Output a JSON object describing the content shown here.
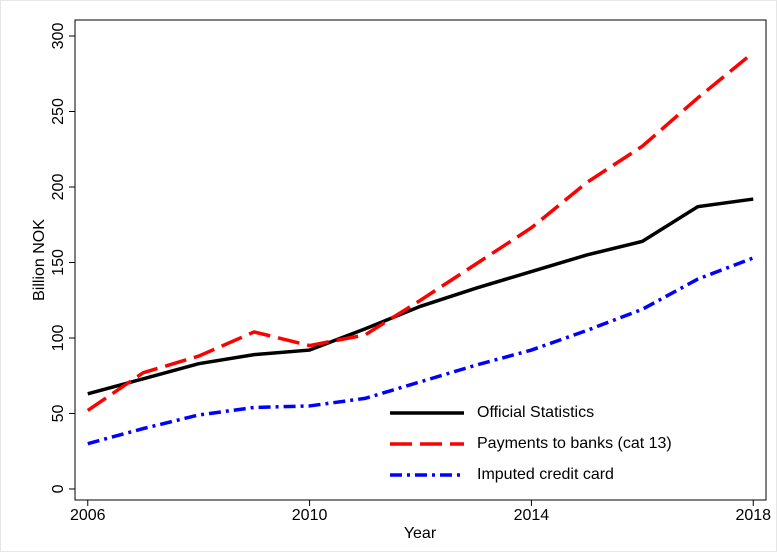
{
  "chart_data": {
    "type": "line",
    "x_label": "Year",
    "y_label": "Billion NOK",
    "x": [
      2006,
      2007,
      2008,
      2009,
      2010,
      2011,
      2012,
      2013,
      2014,
      2015,
      2016,
      2017,
      2018
    ],
    "series": [
      {
        "name": "Official Statistics",
        "color": "#000000",
        "line_style": "solid",
        "values": [
          63,
          73,
          83,
          89,
          92,
          106,
          121,
          133,
          144,
          155,
          164,
          187,
          192
        ]
      },
      {
        "name": "Payments to banks (cat 13)",
        "color": "#ff0000",
        "line_style": "dash",
        "values": [
          52,
          77,
          88,
          104,
          95,
          102,
          125,
          149,
          173,
          203,
          227,
          259,
          289
        ]
      },
      {
        "name": "Imputed credit card",
        "color": "#0000ff",
        "line_style": "dashdot",
        "values": [
          30,
          40,
          49,
          54,
          55,
          60,
          71,
          82,
          92,
          105,
          119,
          139,
          153
        ]
      }
    ],
    "xlim": [
      2005.77,
      2018.23
    ],
    "xticks": [
      2006,
      2010,
      2014,
      2018
    ],
    "ylim": [
      -7.3,
      310.6
    ],
    "yticks": [
      0,
      50,
      100,
      150,
      200,
      250,
      300
    ],
    "legend": "lower right",
    "grid": false
  }
}
